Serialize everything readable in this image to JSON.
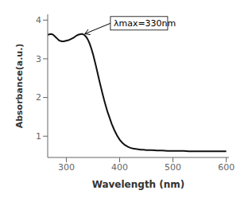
{
  "chart_data": {
    "type": "line",
    "xlabel": "Wavelength (nm)",
    "ylabel": "Absorbance(a.u.)",
    "x": [
      265,
      268,
      271,
      274,
      277,
      280,
      283,
      286,
      289,
      292,
      295,
      298,
      301,
      304,
      307,
      310,
      313,
      316,
      319,
      322,
      325,
      328,
      330,
      332,
      335,
      338,
      341,
      344,
      347,
      350,
      353,
      356,
      359,
      362,
      365,
      368,
      371,
      374,
      377,
      380,
      385,
      390,
      395,
      400,
      405,
      410,
      415,
      420,
      425,
      430,
      435,
      440,
      445,
      450,
      460,
      470,
      480,
      490,
      500,
      510,
      520,
      530,
      540,
      550,
      560,
      570,
      580,
      590,
      600
    ],
    "series": [
      {
        "color": "#111111",
        "values": [
          3.62,
          3.63,
          3.64,
          3.63,
          3.6,
          3.56,
          3.52,
          3.48,
          3.46,
          3.45,
          3.45,
          3.46,
          3.47,
          3.48,
          3.5,
          3.52,
          3.54,
          3.57,
          3.6,
          3.62,
          3.63,
          3.64,
          3.64,
          3.63,
          3.6,
          3.55,
          3.48,
          3.38,
          3.26,
          3.12,
          2.96,
          2.79,
          2.61,
          2.43,
          2.26,
          2.09,
          1.93,
          1.78,
          1.64,
          1.52,
          1.32,
          1.16,
          1.02,
          0.91,
          0.83,
          0.77,
          0.73,
          0.7,
          0.68,
          0.67,
          0.66,
          0.65,
          0.65,
          0.64,
          0.64,
          0.63,
          0.63,
          0.62,
          0.62,
          0.62,
          0.62,
          0.61,
          0.61,
          0.61,
          0.61,
          0.61,
          0.61,
          0.61,
          0.61
        ]
      }
    ],
    "xlim": [
      265,
      605
    ],
    "ylim": [
      0.45,
      4.15
    ],
    "xticks": [
      300,
      400,
      500,
      600
    ],
    "yticks": [
      1,
      2,
      3,
      4
    ],
    "annotations": [
      {
        "text": "λmax=330nm",
        "x": 332,
        "y": 3.63
      }
    ],
    "grid": false
  }
}
